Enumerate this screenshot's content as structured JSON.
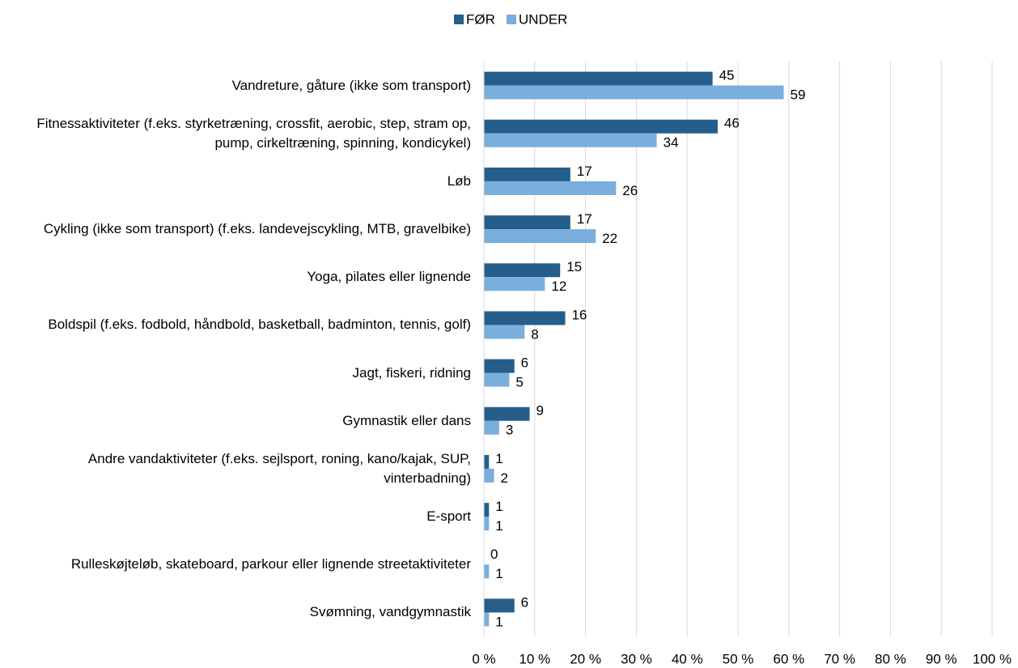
{
  "chart_data": {
    "type": "barh",
    "categories": [
      "Vandreture, gåture (ikke som transport)",
      "Fitnessaktiviteter (f.eks. styrketræning, crossfit, aerobic, step, stram op, pump, cirkeltræning, spinning, kondicykel)",
      "Løb",
      "Cykling (ikke som transport) (f.eks. landevejscykling, MTB, gravelbike)",
      "Yoga, pilates eller lignende",
      "Boldspil (f.eks. fodbold, håndbold, basketball, badminton, tennis, golf)",
      "Jagt, fiskeri, ridning",
      "Gymnastik eller dans",
      "Andre vandaktiviteter (f.eks. sejlsport, roning, kano/kajak, SUP, vinterbadning)",
      "E-sport",
      "Rulleskøjteløb, skateboard, parkour eller lignende streetaktiviteter",
      "Svømning, vandgymnastik"
    ],
    "series": [
      {
        "name": "FØR",
        "color": "#255e8a",
        "values": [
          45,
          46,
          17,
          17,
          15,
          16,
          6,
          9,
          1,
          1,
          0,
          6
        ]
      },
      {
        "name": "UNDER",
        "color": "#7aaedc",
        "values": [
          59,
          34,
          26,
          22,
          12,
          8,
          5,
          3,
          2,
          1,
          1,
          1
        ]
      }
    ],
    "xlim": [
      0,
      100
    ],
    "xticks": [
      {
        "value": 0,
        "label": "0 %"
      },
      {
        "value": 10,
        "label": "10 %"
      },
      {
        "value": 20,
        "label": "20 %"
      },
      {
        "value": 30,
        "label": "30 %"
      },
      {
        "value": 40,
        "label": "40 %"
      },
      {
        "value": 50,
        "label": "50 %"
      },
      {
        "value": 60,
        "label": "60 %"
      },
      {
        "value": 70,
        "label": "70 %"
      },
      {
        "value": 80,
        "label": "80 %"
      },
      {
        "value": 90,
        "label": "90 %"
      },
      {
        "value": 100,
        "label": "100 %"
      }
    ],
    "grid": true,
    "legend": "top"
  }
}
